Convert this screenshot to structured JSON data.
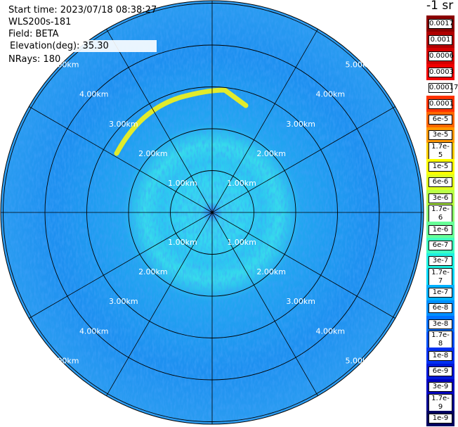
{
  "info": {
    "start_time": "Start time: 2023/07/18 08:38:27",
    "instrument": "WLS200s-181",
    "field": "Field: BETA",
    "elevation": "Elevation(deg): 35.30",
    "nrays": "NRays: 180"
  },
  "colorbar": {
    "unit": "-1 sr",
    "bins": [
      {
        "label": "0.0017",
        "color": "#8b0000"
      },
      {
        "label": "0.001",
        "color": "#b00000"
      },
      {
        "label": "0.0006",
        "color": "#d40000"
      },
      {
        "label": "0.0003",
        "color": "#f00000"
      },
      {
        "label": "0.00017",
        "color": "#ffffff"
      },
      {
        "label": "0.0001",
        "color": "#ff3300"
      },
      {
        "label": "6e-5",
        "color": "#ff6600"
      },
      {
        "label": "3e-5",
        "color": "#ff9900"
      },
      {
        "label": "1.7e-5",
        "color": "#ffcc00"
      },
      {
        "label": "1e-5",
        "color": "#ffff00"
      },
      {
        "label": "6e-6",
        "color": "#e0ff20"
      },
      {
        "label": "3e-6",
        "color": "#b8ff48"
      },
      {
        "label": "1.7e-6",
        "color": "#90ff70"
      },
      {
        "label": "1e-6",
        "color": "#68ff98"
      },
      {
        "label": "6e-7",
        "color": "#40ffc0"
      },
      {
        "label": "3e-7",
        "color": "#20f0e0"
      },
      {
        "label": "1.7e-7",
        "color": "#00d8ff"
      },
      {
        "label": "1e-7",
        "color": "#00b0ff"
      },
      {
        "label": "6e-8",
        "color": "#0090ff"
      },
      {
        "label": "3e-8",
        "color": "#0070ff"
      },
      {
        "label": "1.7e-8",
        "color": "#0050ff"
      },
      {
        "label": "1e-8",
        "color": "#0030f0"
      },
      {
        "label": "6e-9",
        "color": "#0018d8"
      },
      {
        "label": "3e-9",
        "color": "#0000c0"
      },
      {
        "label": "1.7e-9",
        "color": "#000090"
      },
      {
        "label": "1e-9",
        "color": "#000060"
      }
    ]
  },
  "range_ring_labels": [
    "1.00km",
    "2.00km",
    "3.00km",
    "4.00km",
    "5.00km"
  ],
  "colors": {
    "outer_blue": "#1f8cf0",
    "mid_blue": "#2aa9f0",
    "inner_cyan": "#36d9ee",
    "arc_yellow": "#f2f21a"
  }
}
